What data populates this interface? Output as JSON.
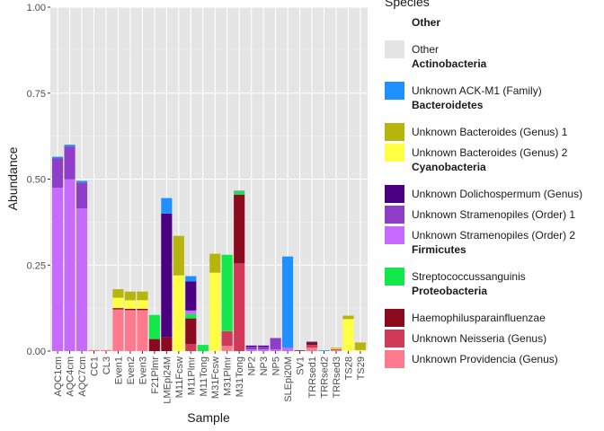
{
  "chart_data": {
    "type": "bar",
    "stacked": true,
    "title": "",
    "xlabel": "Sample",
    "ylabel": "Abundance",
    "ylim": [
      0,
      1
    ],
    "y_ticks": [
      "0.00",
      "0.25",
      "0.50",
      "0.75",
      "1.00"
    ],
    "grid": true,
    "legend_position": "right",
    "legend_title": "Species",
    "categories": [
      "AQC1cm",
      "AQC4cm",
      "AQC7cm",
      "CC1",
      "CL3",
      "Even1",
      "Even2",
      "Even3",
      "F21Plmr",
      "LMEpi24M",
      "M11Fcsw",
      "M11Plmr",
      "M11Tong",
      "M31Fcsw",
      "M31Plmr",
      "M31Tong",
      "NP2",
      "NP3",
      "NP5",
      "SLEpi20M",
      "SV1",
      "TRRsed1",
      "TRRsed2",
      "TRRsed3",
      "TS28",
      "TS29"
    ],
    "legend_groups": [
      {
        "group": "Other",
        "species": [
          "Other"
        ]
      },
      {
        "group": "Actinobacteria",
        "species": [
          "Unknown ACK-M1 (Family)"
        ]
      },
      {
        "group": "Bacteroidetes",
        "species": [
          "Unknown Bacteroides (Genus) 1",
          "Unknown Bacteroides (Genus) 2"
        ]
      },
      {
        "group": "Cyanobacteria",
        "species": [
          "Unknown Dolichospermum (Genus)",
          "Unknown Stramenopiles (Order) 1",
          "Unknown Stramenopiles (Order) 2"
        ]
      },
      {
        "group": "Firmicutes",
        "species": [
          "Streptococcussanguinis"
        ]
      },
      {
        "group": "Proteobacteria",
        "species": [
          "Haemophilusparainfluenzae",
          "Unknown Neisseria (Genus)",
          "Unknown Providencia (Genus)"
        ]
      }
    ],
    "series": [
      {
        "name": "Other",
        "color": "#e5e5e5",
        "values": [
          0,
          0,
          0,
          0,
          0,
          0,
          0,
          0,
          0,
          0,
          0,
          0,
          0,
          0,
          0,
          0,
          0,
          0,
          0,
          0,
          0,
          0,
          0,
          0,
          0,
          0
        ]
      },
      {
        "name": "Unknown ACK-M1 (Family)",
        "color": "#1e90ff",
        "values": [
          0.005,
          0.005,
          0.005,
          0,
          0,
          0,
          0,
          0,
          0,
          0.045,
          0,
          0.015,
          0,
          0,
          0,
          0,
          0,
          0,
          0,
          0.265,
          0,
          0.002,
          0.002,
          0,
          0,
          0
        ]
      },
      {
        "name": "Unknown Bacteroides (Genus) 1",
        "color": "#b5b50e",
        "values": [
          0,
          0,
          0,
          0,
          0,
          0.025,
          0.025,
          0.025,
          0,
          0,
          0.115,
          0,
          0,
          0.055,
          0,
          0,
          0,
          0,
          0,
          0,
          0,
          0,
          0,
          0.002,
          0.01,
          0.022
        ]
      },
      {
        "name": "Unknown Bacteroides (Genus) 2",
        "color": "#ffff44",
        "values": [
          0,
          0,
          0,
          0,
          0,
          0.03,
          0.025,
          0.025,
          0,
          0,
          0.22,
          0,
          0,
          0.228,
          0,
          0,
          0,
          0,
          0,
          0,
          0,
          0,
          0,
          0.002,
          0.093,
          0.003
        ]
      },
      {
        "name": "Unknown Dolichospermum (Genus)",
        "color": "#4b0082",
        "values": [
          0,
          0,
          0,
          0,
          0,
          0,
          0,
          0,
          0,
          0.36,
          0,
          0.085,
          0,
          0,
          0,
          0,
          0.003,
          0.003,
          0,
          0,
          0,
          0,
          0,
          0,
          0,
          0
        ]
      },
      {
        "name": "Unknown Stramenopiles (Order) 1",
        "color": "#8e3ec8",
        "values": [
          0.085,
          0.095,
          0.075,
          0,
          0,
          0,
          0,
          0,
          0,
          0,
          0,
          0,
          0,
          0,
          0,
          0,
          0.008,
          0.008,
          0.033,
          0,
          0,
          0,
          0,
          0,
          0,
          0
        ]
      },
      {
        "name": "Unknown Stramenopiles (Order) 2",
        "color": "#c76bff",
        "values": [
          0.475,
          0.5,
          0.415,
          0,
          0,
          0,
          0,
          0,
          0,
          0,
          0,
          0.01,
          0,
          0,
          0,
          0.002,
          0.005,
          0.005,
          0.005,
          0.01,
          0,
          0,
          0,
          0,
          0,
          0
        ]
      },
      {
        "name": "Streptococcussanguinis",
        "color": "#12e84a",
        "values": [
          0,
          0,
          0,
          0,
          0,
          0,
          0,
          0,
          0.07,
          0,
          0,
          0.013,
          0.018,
          0,
          0.222,
          0.01,
          0,
          0,
          0,
          0,
          0,
          0,
          0,
          0,
          0,
          0
        ]
      },
      {
        "name": "Haemophilusparainfluenzae",
        "color": "#8b0a1e",
        "values": [
          0,
          0,
          0,
          0,
          0,
          0.003,
          0.003,
          0.003,
          0.035,
          0.04,
          0,
          0.075,
          0,
          0,
          0,
          0.2,
          0,
          0,
          0,
          0,
          0.002,
          0.008,
          0,
          0,
          0,
          0
        ]
      },
      {
        "name": "Unknown Neisseria (Genus)",
        "color": "#d03a58",
        "values": [
          0,
          0,
          0,
          0,
          0,
          0.002,
          0.002,
          0.002,
          0,
          0,
          0,
          0.02,
          0,
          0,
          0.043,
          0.255,
          0,
          0,
          0,
          0,
          0,
          0.008,
          0,
          0.003,
          0,
          0
        ]
      },
      {
        "name": "Unknown Providencia (Genus)",
        "color": "#ff7a8c",
        "values": [
          0,
          0,
          0,
          0.003,
          0.003,
          0.12,
          0.118,
          0.118,
          0,
          0,
          0,
          0,
          0,
          0,
          0.015,
          0,
          0,
          0,
          0,
          0,
          0,
          0.01,
          0,
          0.003,
          0,
          0
        ]
      }
    ]
  }
}
